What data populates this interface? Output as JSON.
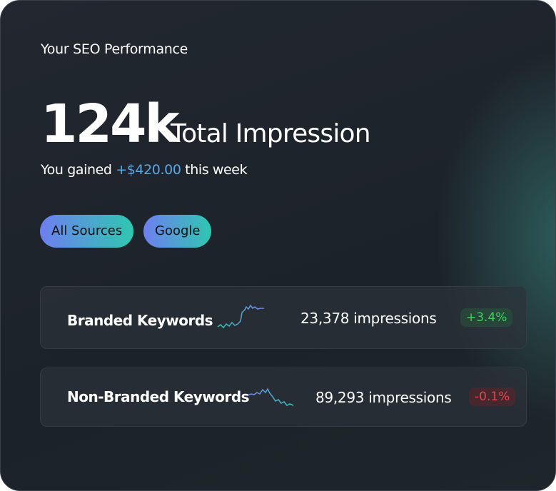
{
  "header": {
    "title": "Your SEO Performance"
  },
  "summary": {
    "value": "124k",
    "label": "Total Impression",
    "gain_prefix": "You gained",
    "gain_amount": "+$420.00",
    "gain_suffix": "this week"
  },
  "filters": [
    "All Sources",
    "Google"
  ],
  "rows": [
    {
      "name": "Branded Keywords",
      "impressions": "23,378 impressions",
      "change": "+3.4%"
    },
    {
      "name": "Non-Branded Keywords",
      "impressions": "89,293 impressions",
      "change": "-0.1%"
    }
  ]
}
